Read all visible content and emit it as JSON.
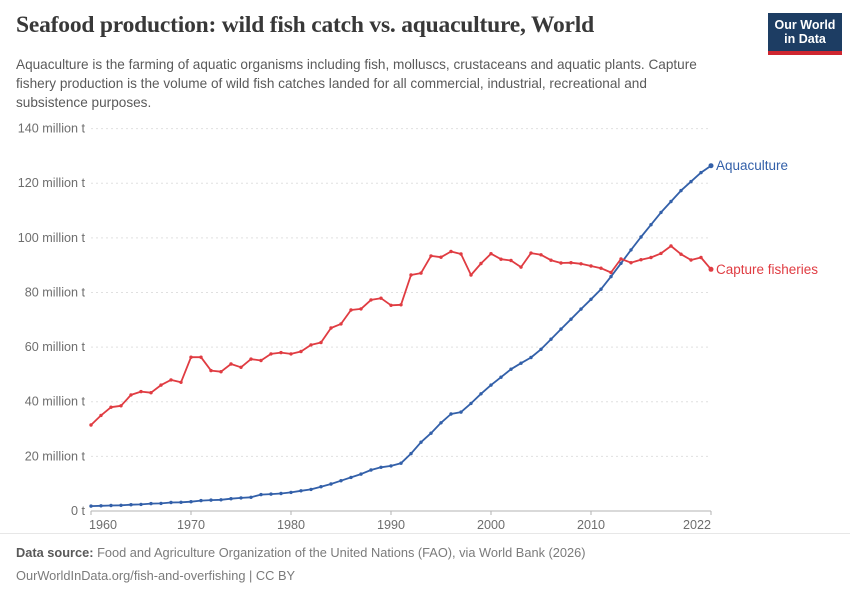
{
  "header": {
    "title": "Seafood production: wild fish catch vs. aquaculture, World",
    "subtitle_lines": [
      "Aquaculture is the farming of aquatic organisms including fish, molluscs, crustaceans and aquatic plants. Capture",
      "fishery production is the volume of wild fish catches landed for all commercial, industrial, recreational and",
      "subsistence purposes."
    ],
    "logo": {
      "line1": "Our World",
      "line2": "in Data",
      "bg_color": "#1d3d63",
      "stripe_color": "#cf2630"
    }
  },
  "chart_data": {
    "type": "line",
    "title": "Seafood production: wild fish catch vs. aquaculture, World",
    "unit": "million t",
    "xlabel": "",
    "ylabel": "",
    "xlim": [
      1960,
      2022
    ],
    "ylim": [
      0,
      140
    ],
    "grid": "horizontal-dashed",
    "legend_position": "end-of-line-labels",
    "yticks": [
      0,
      20,
      40,
      60,
      80,
      100,
      120,
      140
    ],
    "ytick_labels": [
      "0 t",
      "20 million t",
      "40 million t",
      "60 million t",
      "80 million t",
      "100 million t",
      "120 million t",
      "140 million t"
    ],
    "xticks": [
      1960,
      1970,
      1980,
      1990,
      2000,
      2010,
      2022
    ],
    "x": [
      1960,
      1961,
      1962,
      1963,
      1964,
      1965,
      1966,
      1967,
      1968,
      1969,
      1970,
      1971,
      1972,
      1973,
      1974,
      1975,
      1976,
      1977,
      1978,
      1979,
      1980,
      1981,
      1982,
      1983,
      1984,
      1985,
      1986,
      1987,
      1988,
      1989,
      1990,
      1991,
      1992,
      1993,
      1994,
      1995,
      1996,
      1997,
      1998,
      1999,
      2000,
      2001,
      2002,
      2003,
      2004,
      2005,
      2006,
      2007,
      2008,
      2009,
      2010,
      2011,
      2012,
      2013,
      2014,
      2015,
      2016,
      2017,
      2018,
      2019,
      2020,
      2021,
      2022
    ],
    "series": [
      {
        "name": "Aquaculture",
        "color": "#3360a9",
        "values": [
          1.8,
          1.9,
          2.0,
          2.1,
          2.3,
          2.4,
          2.7,
          2.8,
          3.1,
          3.2,
          3.4,
          3.8,
          4.0,
          4.1,
          4.5,
          4.8,
          5.0,
          6.0,
          6.2,
          6.4,
          6.8,
          7.4,
          7.9,
          8.9,
          9.9,
          11.1,
          12.3,
          13.5,
          15.0,
          16.0,
          16.5,
          17.5,
          21.0,
          25.2,
          28.5,
          32.3,
          35.5,
          36.2,
          39.4,
          42.9,
          46.1,
          49.0,
          51.9,
          54.1,
          56.2,
          59.2,
          62.9,
          66.6,
          70.2,
          73.9,
          77.5,
          81.2,
          85.8,
          90.7,
          95.6,
          100.3,
          104.8,
          109.3,
          113.3,
          117.3,
          120.6,
          123.9,
          126.4
        ]
      },
      {
        "name": "Capture fisheries",
        "color": "#e03c42",
        "values": [
          31.5,
          35.0,
          38.0,
          38.5,
          42.5,
          43.7,
          43.3,
          46.1,
          48.0,
          47.1,
          56.3,
          56.3,
          51.4,
          51.0,
          53.8,
          52.6,
          55.6,
          55.1,
          57.5,
          58.0,
          57.5,
          58.4,
          60.8,
          61.7,
          67.0,
          68.5,
          73.6,
          74.0,
          77.3,
          77.9,
          75.3,
          75.5,
          86.4,
          87.1,
          93.4,
          92.9,
          95.0,
          94.1,
          86.4,
          90.6,
          94.2,
          92.2,
          91.7,
          89.3,
          94.4,
          93.8,
          91.8,
          90.8,
          90.9,
          90.5,
          89.7,
          88.9,
          87.3,
          92.3,
          90.9,
          92.0,
          92.8,
          94.3,
          97.0,
          94.0,
          91.9,
          92.8,
          88.5
        ]
      }
    ]
  },
  "footer": {
    "source_label": "Data source:",
    "source_text": " Food and Agriculture Organization of the United Nations (FAO), via World Bank (2026)",
    "link_text": "OurWorldInData.org/fish-and-overfishing | CC BY"
  }
}
